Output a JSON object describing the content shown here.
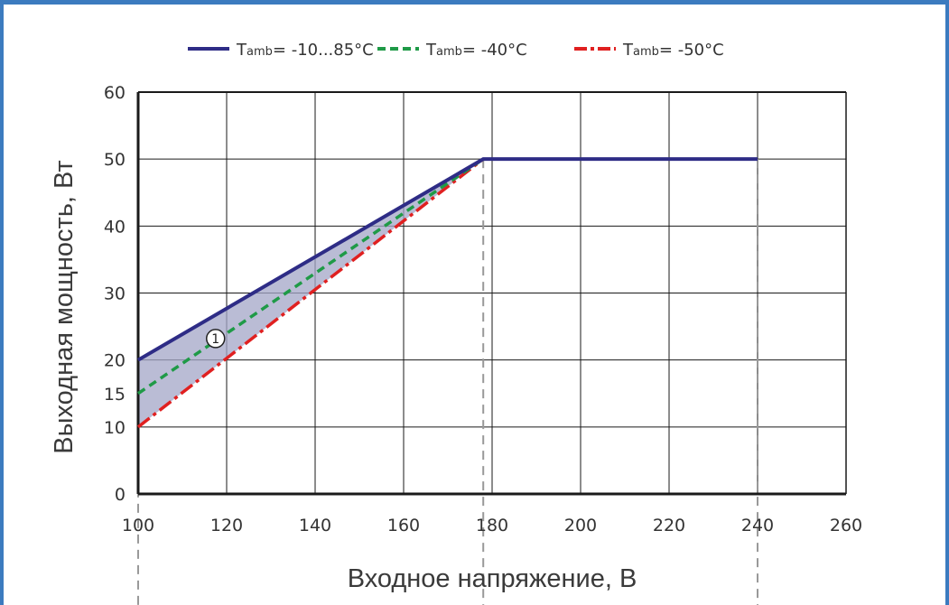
{
  "colors": {
    "frame": "#3c7bbf",
    "grid": "#1a1a1a",
    "area": "#a3a6c7",
    "series_blue": "#2e2c86",
    "series_green": "#1f9a47",
    "series_red": "#e02020",
    "guide": "#999999"
  },
  "chart_data": {
    "type": "line",
    "xlabel": "Входное напряжение, В",
    "ylabel": "Выходная мощность, Вт",
    "xlim": [
      100,
      260
    ],
    "ylim": [
      0,
      60
    ],
    "x_ticks": [
      "100",
      "120",
      "140",
      "160",
      "180",
      "200",
      "220",
      "240",
      "260"
    ],
    "y_ticks": [
      {
        "value": 0,
        "label": "0"
      },
      {
        "value": 10,
        "label": "10"
      },
      {
        "value": 15,
        "label": "15"
      },
      {
        "value": 20,
        "label": "20"
      },
      {
        "value": 30,
        "label": "30"
      },
      {
        "value": 40,
        "label": "40"
      },
      {
        "value": 50,
        "label": "50"
      },
      {
        "value": 60,
        "label": "60"
      }
    ],
    "grid": true,
    "legend_position": "top",
    "series": [
      {
        "name_main": "T",
        "name_sub": "amb",
        "name_rest": "= -10...85°C",
        "style": "solid",
        "color": "#2e2c86",
        "x": [
          100,
          178,
          240
        ],
        "y": [
          20,
          50,
          50
        ]
      },
      {
        "name_main": "T",
        "name_sub": "amb",
        "name_rest": "= -40°C",
        "style": "dashed",
        "color": "#1f9a47",
        "x": [
          100,
          178
        ],
        "y": [
          15,
          50
        ]
      },
      {
        "name_main": "T",
        "name_sub": "amb",
        "name_rest": "= -50°C",
        "style": "dashdot",
        "color": "#e02020",
        "x": [
          100,
          178
        ],
        "y": [
          10,
          50
        ]
      }
    ],
    "shaded_region": {
      "upper": {
        "x": [
          100,
          178
        ],
        "y": [
          20,
          50
        ]
      },
      "lower": {
        "x": [
          100,
          178
        ],
        "y": [
          10,
          50
        ]
      }
    },
    "guide_lines_x": [
      100,
      178,
      240
    ],
    "annotation": {
      "text": "1",
      "x": 117.5,
      "y": 23.2
    }
  }
}
